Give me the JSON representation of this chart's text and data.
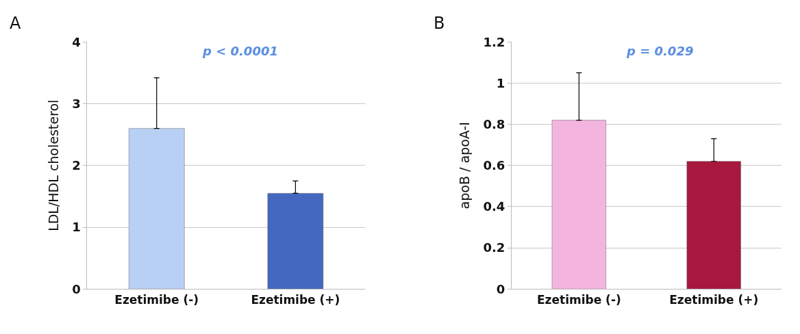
{
  "chart_data": [
    {
      "type": "bar",
      "title": "A",
      "ylabel": "LDL/HDL cholesterol",
      "categories": [
        "Ezetimibe (-)",
        "Ezetimibe (+)"
      ],
      "values": [
        2.6,
        1.55
      ],
      "colors": [
        "#b8d0f4",
        "#4468c0"
      ],
      "errors": [
        [
          2.6,
          3.42
        ],
        [
          1.55,
          1.75
        ]
      ],
      "ylim": [
        0,
        4
      ],
      "yticks": [
        0,
        1,
        2,
        3,
        4
      ],
      "grid": "y",
      "annotations": [
        "p < 0.0001"
      ]
    },
    {
      "type": "bar",
      "title": "B",
      "ylabel": "apoB / apoA-I",
      "categories": [
        "Ezetimibe (-)",
        "Ezetimibe (+)"
      ],
      "values": [
        0.82,
        0.62
      ],
      "colors": [
        "#f4b4e0",
        "#a8183e"
      ],
      "errors": [
        [
          0.82,
          1.05
        ],
        [
          0.62,
          0.73
        ]
      ],
      "ylim": [
        0,
        1.2
      ],
      "yticks": [
        0,
        0.2,
        0.4,
        0.6,
        0.8,
        1,
        1.2
      ],
      "grid": "y",
      "annotations": [
        "p = 0.029"
      ]
    }
  ]
}
